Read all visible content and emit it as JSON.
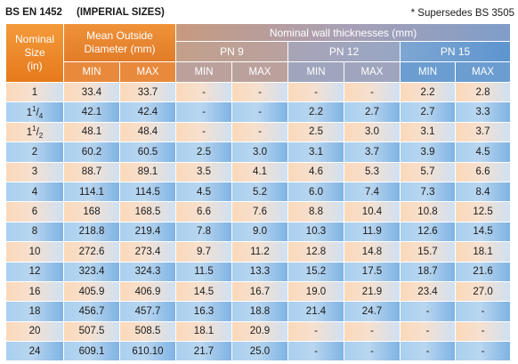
{
  "header": {
    "standard": "BS EN 1452",
    "sizes": "(IMPERIAL SIZES)",
    "note": "* Supersedes BS 3505"
  },
  "table": {
    "col_size": [
      "Nominal",
      "Size",
      "(in)"
    ],
    "col_od": [
      "Mean Outside",
      "Diameter (mm)"
    ],
    "col_wall": "Nominal wall thicknesses (mm)",
    "pn": [
      "PN 9",
      "PN 12",
      "PN 15"
    ],
    "min_label": "MIN",
    "max_label": "MAX",
    "rows": [
      {
        "size": "1",
        "od_min": "33.4",
        "od_max": "33.7",
        "pn9_min": "-",
        "pn9_max": "-",
        "pn12_min": "-",
        "pn12_max": "-",
        "pn15_min": "2.2",
        "pn15_max": "2.8"
      },
      {
        "size": "1 1/4",
        "od_min": "42.1",
        "od_max": "42.4",
        "pn9_min": "-",
        "pn9_max": "-",
        "pn12_min": "2.2",
        "pn12_max": "2.7",
        "pn15_min": "2.7",
        "pn15_max": "3.3"
      },
      {
        "size": "1 1/2",
        "od_min": "48.1",
        "od_max": "48.4",
        "pn9_min": "-",
        "pn9_max": "-",
        "pn12_min": "2.5",
        "pn12_max": "3.0",
        "pn15_min": "3.1",
        "pn15_max": "3.7"
      },
      {
        "size": "2",
        "od_min": "60.2",
        "od_max": "60.5",
        "pn9_min": "2.5",
        "pn9_max": "3.0",
        "pn12_min": "3.1",
        "pn12_max": "3.7",
        "pn15_min": "3.9",
        "pn15_max": "4.5"
      },
      {
        "size": "3",
        "od_min": "88.7",
        "od_max": "89.1",
        "pn9_min": "3.5",
        "pn9_max": "4.1",
        "pn12_min": "4.6",
        "pn12_max": "5.3",
        "pn15_min": "5.7",
        "pn15_max": "6.6"
      },
      {
        "size": "4",
        "od_min": "114.1",
        "od_max": "114.5",
        "pn9_min": "4.5",
        "pn9_max": "5.2",
        "pn12_min": "6.0",
        "pn12_max": "7.4",
        "pn15_min": "7.3",
        "pn15_max": "8.4"
      },
      {
        "size": "6",
        "od_min": "168",
        "od_max": "168.5",
        "pn9_min": "6.6",
        "pn9_max": "7.6",
        "pn12_min": "8.8",
        "pn12_max": "10.4",
        "pn15_min": "10.8",
        "pn15_max": "12.5"
      },
      {
        "size": "8",
        "od_min": "218.8",
        "od_max": "219.4",
        "pn9_min": "7.8",
        "pn9_max": "9.0",
        "pn12_min": "10.3",
        "pn12_max": "11.9",
        "pn15_min": "12.6",
        "pn15_max": "14.5"
      },
      {
        "size": "10",
        "od_min": "272.6",
        "od_max": "273.4",
        "pn9_min": "9.7",
        "pn9_max": "11.2",
        "pn12_min": "12.8",
        "pn12_max": "14.8",
        "pn15_min": "15.7",
        "pn15_max": "18.1"
      },
      {
        "size": "12",
        "od_min": "323.4",
        "od_max": "324.3",
        "pn9_min": "11.5",
        "pn9_max": "13.3",
        "pn12_min": "15.2",
        "pn12_max": "17.5",
        "pn15_min": "18.7",
        "pn15_max": "21.6"
      },
      {
        "size": "16",
        "od_min": "405.9",
        "od_max": "406.9",
        "pn9_min": "14.5",
        "pn9_max": "16.7",
        "pn12_min": "19.0",
        "pn12_max": "21.9",
        "pn15_min": "23.4",
        "pn15_max": "27.0"
      },
      {
        "size": "18",
        "od_min": "456.7",
        "od_max": "457.7",
        "pn9_min": "16.3",
        "pn9_max": "18.8",
        "pn12_min": "21.4",
        "pn12_max": "24.7",
        "pn15_min": "-",
        "pn15_max": "-"
      },
      {
        "size": "20",
        "od_min": "507.5",
        "od_max": "508.5",
        "pn9_min": "18.1",
        "pn9_max": "20.9",
        "pn12_min": "-",
        "pn12_max": "-",
        "pn15_min": "-",
        "pn15_max": "-"
      },
      {
        "size": "24",
        "od_min": "609.1",
        "od_max": "610.10",
        "pn9_min": "21.7",
        "pn9_max": "25.0",
        "pn12_min": "-",
        "pn12_max": "-",
        "pn15_min": "-",
        "pn15_max": "-"
      }
    ]
  }
}
